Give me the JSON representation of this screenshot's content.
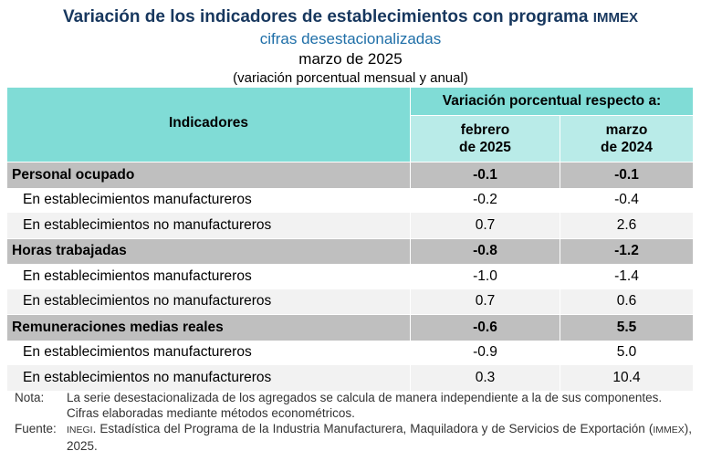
{
  "header": {
    "title": "Variación de los indicadores de establecimientos con programa",
    "title_suffix": "IMMEX",
    "subtitle": "cifras desestacionalizadas",
    "period": "marzo de 2025",
    "note": "(variación porcentual mensual y anual)"
  },
  "table": {
    "col_indicators": "Indicadores",
    "col_group": "Variación porcentual respecto a:",
    "col_a_line1": "febrero",
    "col_a_line2": "de 2025",
    "col_b_line1": "marzo",
    "col_b_line2": "de 2024",
    "rows": [
      {
        "label": "Personal ocupado",
        "a": "-0.1",
        "b": "-0.1"
      },
      {
        "label": "En establecimientos manufactureros",
        "a": "-0.2",
        "b": "-0.4"
      },
      {
        "label": "En establecimientos no manufactureros",
        "a": "0.7",
        "b": "2.6"
      },
      {
        "label": "Horas trabajadas",
        "a": "-0.8",
        "b": "-1.2"
      },
      {
        "label": "En establecimientos manufactureros",
        "a": "-1.0",
        "b": "-1.4"
      },
      {
        "label": "En establecimientos no manufactureros",
        "a": "0.7",
        "b": "0.6"
      },
      {
        "label": "Remuneraciones medias reales",
        "a": "-0.6",
        "b": "5.5"
      },
      {
        "label": "En establecimientos manufactureros",
        "a": "-0.9",
        "b": "5.0"
      },
      {
        "label": "En establecimientos no manufactureros",
        "a": "0.3",
        "b": "10.4"
      }
    ]
  },
  "notes": {
    "nota_label": "Nota:",
    "nota_1": "La serie desestacionalizada de los agregados se calcula de manera independiente a la de sus componentes.",
    "nota_2": "Cifras elaboradas mediante métodos econométricos.",
    "fuente_label": "Fuente:",
    "fuente_org": "INEGI",
    "fuente_text": ". Estadística del Programa de la Industria Manufacturera, Maquiladora y de Servicios de Exportación (",
    "fuente_abbr": "IMMEX",
    "fuente_end": "), 2025."
  },
  "colors": {
    "title": "#17375e",
    "subtitle": "#1f6fa8",
    "header_dark": "#80dcd6",
    "header_light": "#b9ebe8",
    "category_row": "#bfbfbf",
    "alt_row": "#f2f2f2"
  }
}
